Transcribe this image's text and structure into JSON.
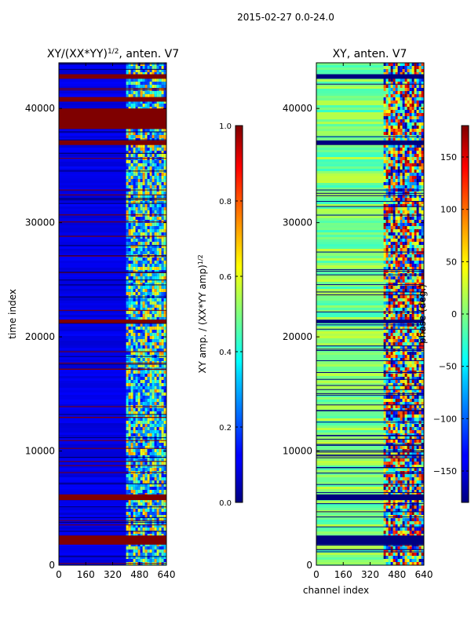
{
  "figure": {
    "suptitle": "2015-02-27 0.0-24.0"
  },
  "chart_data": [
    {
      "type": "heatmap",
      "title_main": "XY/(XX*YY)",
      "title_exp": "1/2",
      "title_suffix": ", anten. V7",
      "xlabel": "",
      "ylabel": "time index",
      "xlim": [
        0,
        640
      ],
      "ylim": [
        0,
        44000
      ],
      "xticks": [
        0,
        160,
        320,
        480,
        640
      ],
      "yticks": [
        0,
        10000,
        20000,
        30000,
        40000
      ],
      "xtick_labels": [
        "0",
        "160",
        "320",
        "480",
        "640"
      ],
      "ytick_labels": [
        "0",
        "10000",
        "20000",
        "30000",
        "40000"
      ],
      "active_channel_start": 400,
      "flagged_row_bands": [
        [
          1800,
          2600
        ],
        [
          5700,
          6200
        ],
        [
          21200,
          21500
        ],
        [
          36800,
          37200
        ],
        [
          38200,
          40000
        ],
        [
          40600,
          41000
        ],
        [
          42600,
          43000
        ]
      ],
      "colorbar": {
        "label_main": "XY amp. / (XX*YY amp)",
        "label_exp": "1/2",
        "range": [
          0.0,
          1.0
        ],
        "ticks": [
          0.0,
          0.2,
          0.4,
          0.6,
          0.8,
          1.0
        ],
        "tick_labels": [
          "0.0",
          "0.2",
          "0.4",
          "0.6",
          "0.8",
          "1.0"
        ]
      }
    },
    {
      "type": "heatmap",
      "title_main": "XY, anten. V7",
      "xlabel": "channel index",
      "ylabel": "",
      "xlim": [
        0,
        640
      ],
      "ylim": [
        0,
        44000
      ],
      "xticks": [
        0,
        160,
        320,
        480,
        640
      ],
      "yticks": [
        0,
        10000,
        20000,
        30000,
        40000
      ],
      "xtick_labels": [
        "0",
        "160",
        "320",
        "480",
        "640"
      ],
      "ytick_labels": [
        "0",
        "10000",
        "20000",
        "30000",
        "40000"
      ],
      "active_channel_start": 400,
      "flagged_row_bands": [
        [
          1800,
          2600
        ],
        [
          5700,
          6200
        ],
        [
          21200,
          21500
        ],
        [
          36800,
          37200
        ],
        [
          42600,
          43000
        ]
      ],
      "colorbar": {
        "label_main": "phase (deg.)",
        "range": [
          -180,
          180
        ],
        "ticks": [
          -150,
          -100,
          -50,
          0,
          50,
          100,
          150
        ],
        "tick_labels": [
          "−150",
          "−100",
          "−50",
          "0",
          "50",
          "100",
          "150"
        ]
      }
    }
  ]
}
